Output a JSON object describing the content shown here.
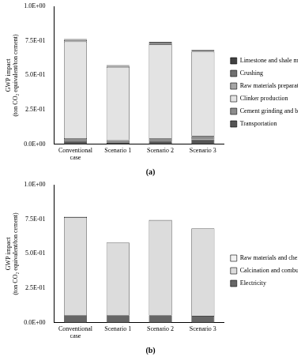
{
  "chart_data": [
    {
      "type": "bar",
      "title": "(a)",
      "stacked": true,
      "legend": "right",
      "grid": false,
      "ylabel": [
        "GWP impact",
        "(ton CO₂ equivalent/ton cement)"
      ],
      "categories": [
        "Conventional case",
        "Scenario 1",
        "Scenario 2",
        "Scenario 3"
      ],
      "ylim": [
        0,
        1
      ],
      "yticks": [
        {
          "value": 0,
          "label": "0.0E+00"
        },
        {
          "value": 0.25,
          "label": "2.5E-01"
        },
        {
          "value": 0.5,
          "label": "5.0E-01"
        },
        {
          "value": 0.75,
          "label": "7.5E-01"
        },
        {
          "value": 1,
          "label": "1.0E+00"
        }
      ],
      "series": [
        {
          "name": "Transportation",
          "color": "#555555",
          "values": [
            0.02,
            0.01,
            0.02,
            0.035
          ]
        },
        {
          "name": "Cement grinding and blending",
          "color": "#8c8c8c",
          "values": [
            0.025,
            0.02,
            0.025,
            0.025
          ]
        },
        {
          "name": "Clinker production",
          "color": "#e3e3e3",
          "values": [
            0.7,
            0.53,
            0.68,
            0.61
          ]
        },
        {
          "name": "Raw materials preparation",
          "color": "#a6a6a6",
          "values": [
            0.01,
            0.008,
            0.01,
            0.008
          ]
        },
        {
          "name": "Crushing",
          "color": "#707070",
          "values": [
            0.002,
            0.002,
            0.002,
            0.002
          ]
        },
        {
          "name": "Limestone and shale minng",
          "color": "#404040",
          "values": [
            0.005,
            0.004,
            0.005,
            0.004
          ]
        }
      ]
    },
    {
      "type": "bar",
      "title": "(b)",
      "stacked": true,
      "legend": "right",
      "grid": false,
      "ylabel": [
        "GWP impact",
        "(ton CO₂ equivalent/ton cement)"
      ],
      "categories": [
        "Conventional case",
        "Scenario 1",
        "Scenario 2",
        "Scenario 3"
      ],
      "ylim": [
        0,
        1
      ],
      "yticks": [
        {
          "value": 0,
          "label": "0.0E+00"
        },
        {
          "value": 0.25,
          "label": "2.5E-01"
        },
        {
          "value": 0.5,
          "label": "5.0E-01"
        },
        {
          "value": 0.75,
          "label": "7.5E-01"
        },
        {
          "value": 1,
          "label": "1.0E+00"
        }
      ],
      "series": [
        {
          "name": "Electricity",
          "color": "#666666",
          "values": [
            0.055,
            0.055,
            0.055,
            0.05
          ]
        },
        {
          "name": "Calcination and combustion emissions",
          "color": "#dcdcdc",
          "values": [
            0.71,
            0.525,
            0.688,
            0.633
          ]
        },
        {
          "name": "Raw materials and chemicals",
          "color": "#f2f2f2",
          "values": [
            0.003,
            0.003,
            0.003,
            0.003
          ]
        }
      ]
    }
  ]
}
